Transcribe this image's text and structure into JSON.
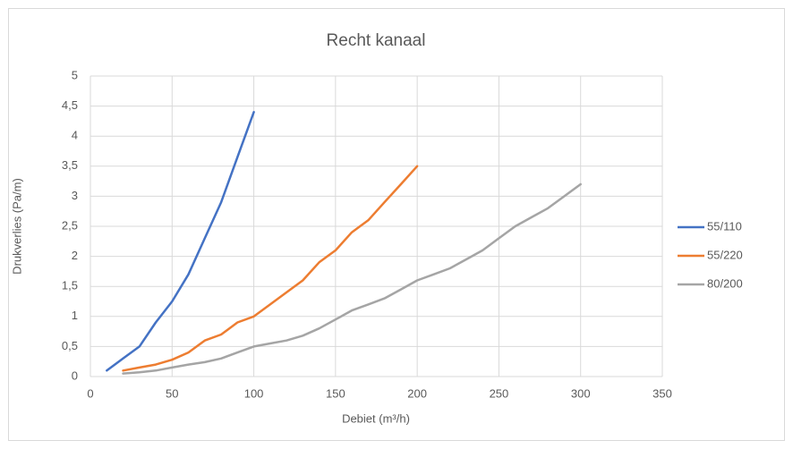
{
  "chart_data": {
    "type": "line",
    "title": "Recht kanaal",
    "x_label": "Debiet (m³/h)",
    "y_label": "Drukverlies (Pa/m)",
    "xlim": [
      0,
      350
    ],
    "xticks": [
      0,
      50,
      100,
      150,
      200,
      250,
      300,
      350
    ],
    "ylim": [
      0,
      5
    ],
    "yticks": [
      0,
      {
        "value": 0.5,
        "label": "0,5"
      },
      1,
      {
        "value": 1.5,
        "label": "1,5"
      },
      2,
      {
        "value": 2.5,
        "label": "2,5"
      },
      3,
      {
        "value": 3.5,
        "label": "3,5"
      },
      4,
      {
        "value": 4.5,
        "label": "4,5"
      },
      5
    ],
    "grid": true,
    "legend": "right",
    "series": [
      {
        "name": "55/110",
        "color": "#4472c4",
        "x": [
          10,
          20,
          30,
          40,
          50,
          60,
          70,
          80,
          90,
          100
        ],
        "values": [
          0.1,
          0.3,
          0.5,
          0.9,
          1.25,
          1.7,
          2.3,
          2.9,
          3.65,
          4.4
        ]
      },
      {
        "name": "55/220",
        "color": "#ed7d31",
        "x": [
          20,
          30,
          40,
          50,
          60,
          70,
          80,
          90,
          100,
          110,
          120,
          130,
          140,
          150,
          160,
          170,
          180,
          190,
          200
        ],
        "values": [
          0.1,
          0.15,
          0.2,
          0.28,
          0.4,
          0.6,
          0.7,
          0.9,
          1.0,
          1.2,
          1.4,
          1.6,
          1.9,
          2.1,
          2.4,
          2.6,
          2.9,
          3.2,
          3.5
        ]
      },
      {
        "name": "80/200",
        "color": "#a5a5a5",
        "x": [
          20,
          30,
          40,
          50,
          60,
          70,
          80,
          90,
          100,
          110,
          120,
          130,
          140,
          150,
          160,
          170,
          180,
          190,
          200,
          210,
          220,
          230,
          240,
          250,
          260,
          270,
          280,
          290,
          300
        ],
        "values": [
          0.05,
          0.07,
          0.1,
          0.15,
          0.2,
          0.24,
          0.3,
          0.4,
          0.5,
          0.55,
          0.6,
          0.68,
          0.8,
          0.95,
          1.1,
          1.2,
          1.3,
          1.45,
          1.6,
          1.7,
          1.8,
          1.95,
          2.1,
          2.3,
          2.5,
          2.65,
          2.8,
          3.0,
          3.2
        ]
      }
    ]
  }
}
